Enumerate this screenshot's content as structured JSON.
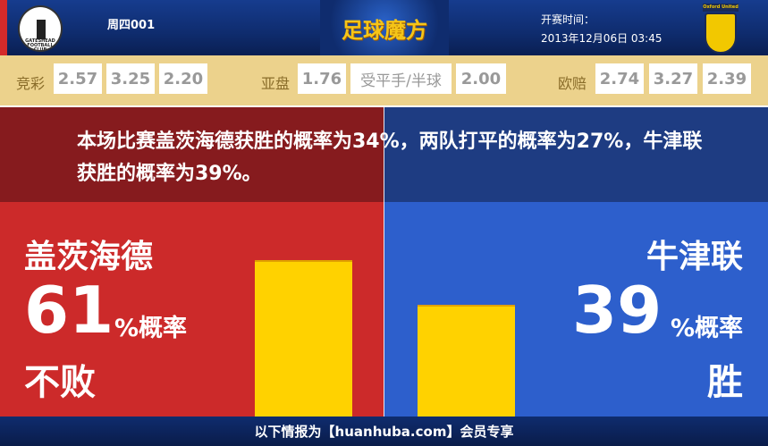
{
  "header": {
    "match_no": "周四001",
    "brand": "足球魔方",
    "kickoff_label": "开赛时间：",
    "kickoff_time": "2013年12月06日 03:45",
    "home_logo_text": "GATESHEAD FOOTBALL CLUB",
    "away_logo_text": "Oxford United"
  },
  "odds": {
    "jc": {
      "label": "竞彩",
      "values": [
        "2.57",
        "3.25",
        "2.20"
      ]
    },
    "asian": {
      "label": "亚盘",
      "home": "1.76",
      "line": "受平手/半球",
      "away": "2.00"
    },
    "euro": {
      "label": "欧赔",
      "values": [
        "2.74",
        "3.27",
        "2.39"
      ]
    }
  },
  "summary": "本场比赛盖茨海德获胜的概率为34%，两队打平的概率为27%，牛津联获胜的概率为39%。",
  "home": {
    "name": "盖茨海德",
    "pct": "61",
    "pct_suffix": "%概率",
    "outcome": "不败",
    "value": 61,
    "color": "#cc2a2a"
  },
  "away": {
    "name": "牛津联",
    "pct": "39",
    "pct_suffix": "%概率",
    "outcome": "胜",
    "value": 39,
    "color": "#2d5fcc"
  },
  "bar_color": "#ffd200",
  "footer": "以下情报为【huanhuba.com】会员专享"
}
